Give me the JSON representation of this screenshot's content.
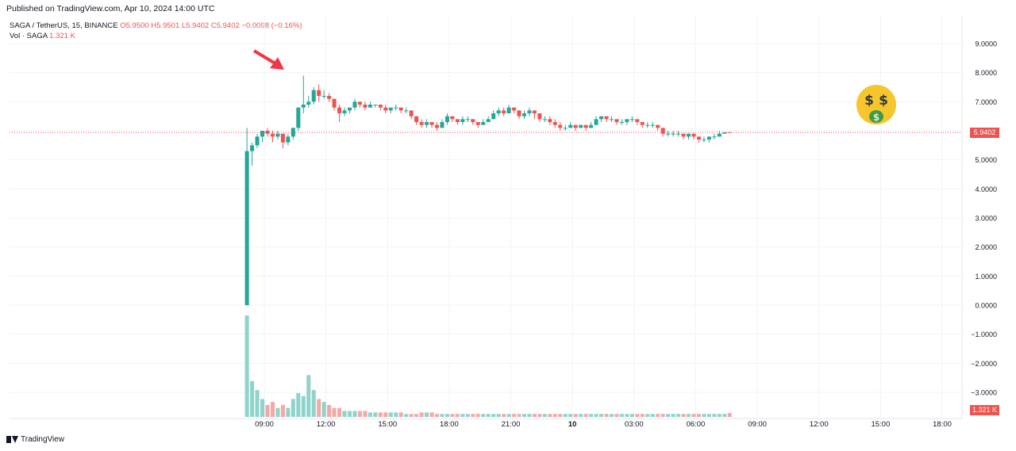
{
  "header": {
    "published": "Published on TradingView.com, Apr 10, 2024 14:00 UTC"
  },
  "legend": {
    "symbol": "SAGA / TetherUS, 15, BINANCE",
    "ohlc": "O5.9500 H5.9501 L5.9402 C5.9402 −0.0098 (−0.16%)",
    "vol_label": "Vol · SAGA",
    "vol_value": "1.321 K"
  },
  "badges": {
    "last_price": "5.9402",
    "last_volume": "1.321 K"
  },
  "footer": {
    "brand": "TradingView"
  },
  "icons": {
    "arrow": "red-arrow-icon",
    "emoji": "money-mouth-face-icon",
    "logo": "tradingview-logo-icon"
  },
  "colors": {
    "up": "#26a69a",
    "down": "#ef5350",
    "grid": "#f0f3fa",
    "text": "#131722"
  },
  "chart_data": {
    "type": "candlestick",
    "symbol": "SAGA / TetherUS",
    "interval": "15",
    "exchange": "BINANCE",
    "last_price": 5.9402,
    "y_ticks": [
      "9.0000",
      "8.0000",
      "7.0000",
      "6.0000",
      "5.0000",
      "4.0000",
      "3.0000",
      "2.0000",
      "1.0000",
      "0.0000",
      "−1.0000",
      "−2.0000",
      "−3.0000"
    ],
    "y_tick_values": [
      9,
      8,
      7,
      6,
      5,
      4,
      3,
      2,
      1,
      0,
      -1,
      -2,
      -3
    ],
    "x_ticks": [
      "09:00",
      "12:00",
      "15:00",
      "18:00",
      "21:00",
      "10",
      "03:00",
      "06:00",
      "09:00",
      "12:00",
      "15:00",
      "18:00"
    ],
    "x_tick_hours": [
      9,
      12,
      15,
      18,
      21,
      24,
      27,
      30,
      33,
      36,
      39,
      42
    ],
    "start_hour": 8,
    "bar_minutes": 15,
    "ylim": [
      -3.5,
      9.5
    ],
    "grid": true,
    "candles": [
      [
        0.0,
        5.3,
        6.1,
        0.0
      ],
      [
        5.3,
        5.5,
        5.6,
        4.8
      ],
      [
        5.5,
        5.8,
        5.9,
        5.4
      ],
      [
        5.8,
        6.0,
        6.0,
        5.6
      ],
      [
        6.0,
        5.9,
        6.1,
        5.8
      ],
      [
        5.9,
        5.8,
        6.0,
        5.6
      ],
      [
        5.8,
        5.9,
        6.0,
        5.7
      ],
      [
        5.9,
        5.6,
        5.9,
        5.4
      ],
      [
        5.6,
        5.8,
        5.9,
        5.5
      ],
      [
        5.8,
        6.1,
        6.1,
        5.7
      ],
      [
        6.1,
        6.8,
        6.8,
        6.0
      ],
      [
        6.8,
        6.9,
        7.9,
        6.6
      ],
      [
        6.9,
        7.0,
        7.2,
        6.8
      ],
      [
        7.0,
        7.4,
        7.5,
        6.9
      ],
      [
        7.4,
        7.2,
        7.6,
        7.0
      ],
      [
        7.2,
        7.2,
        7.4,
        7.1
      ],
      [
        7.2,
        7.1,
        7.3,
        7.0
      ],
      [
        7.1,
        6.8,
        7.1,
        6.7
      ],
      [
        6.8,
        6.6,
        6.9,
        6.3
      ],
      [
        6.6,
        6.7,
        6.8,
        6.5
      ],
      [
        6.7,
        6.8,
        6.8,
        6.6
      ],
      [
        6.8,
        7.0,
        7.1,
        6.7
      ],
      [
        7.0,
        6.9,
        7.0,
        6.8
      ],
      [
        6.9,
        6.8,
        7.0,
        6.7
      ],
      [
        6.8,
        6.9,
        7.0,
        6.8
      ],
      [
        6.9,
        6.9,
        6.9,
        6.8
      ],
      [
        6.9,
        6.8,
        6.9,
        6.7
      ],
      [
        6.8,
        6.7,
        6.9,
        6.6
      ],
      [
        6.7,
        6.8,
        6.8,
        6.6
      ],
      [
        6.8,
        6.8,
        6.9,
        6.7
      ],
      [
        6.8,
        6.7,
        6.8,
        6.6
      ],
      [
        6.7,
        6.7,
        6.8,
        6.6
      ],
      [
        6.7,
        6.5,
        6.7,
        6.4
      ],
      [
        6.5,
        6.3,
        6.5,
        6.2
      ],
      [
        6.3,
        6.2,
        6.4,
        6.1
      ],
      [
        6.2,
        6.3,
        6.4,
        6.1
      ],
      [
        6.3,
        6.2,
        6.3,
        6.1
      ],
      [
        6.2,
        6.1,
        6.3,
        6.0
      ],
      [
        6.1,
        6.3,
        6.4,
        6.1
      ],
      [
        6.3,
        6.5,
        6.6,
        6.2
      ],
      [
        6.5,
        6.4,
        6.5,
        6.3
      ],
      [
        6.4,
        6.3,
        6.4,
        6.2
      ],
      [
        6.3,
        6.4,
        6.5,
        6.2
      ],
      [
        6.4,
        6.4,
        6.5,
        6.3
      ],
      [
        6.4,
        6.3,
        6.4,
        6.2
      ],
      [
        6.3,
        6.2,
        6.3,
        6.1
      ],
      [
        6.2,
        6.3,
        6.4,
        6.2
      ],
      [
        6.3,
        6.4,
        6.5,
        6.3
      ],
      [
        6.4,
        6.6,
        6.7,
        6.4
      ],
      [
        6.6,
        6.7,
        6.8,
        6.5
      ],
      [
        6.7,
        6.6,
        6.8,
        6.5
      ],
      [
        6.6,
        6.8,
        6.9,
        6.6
      ],
      [
        6.8,
        6.7,
        6.8,
        6.6
      ],
      [
        6.7,
        6.5,
        6.7,
        6.4
      ],
      [
        6.5,
        6.6,
        6.7,
        6.4
      ],
      [
        6.6,
        6.7,
        6.8,
        6.5
      ],
      [
        6.7,
        6.6,
        6.7,
        6.4
      ],
      [
        6.6,
        6.4,
        6.6,
        6.3
      ],
      [
        6.4,
        6.4,
        6.5,
        6.3
      ],
      [
        6.4,
        6.3,
        6.5,
        6.2
      ],
      [
        6.3,
        6.2,
        6.4,
        6.1
      ],
      [
        6.2,
        6.1,
        6.3,
        6.0
      ],
      [
        6.1,
        6.1,
        6.2,
        6.0
      ],
      [
        6.1,
        6.2,
        6.3,
        6.1
      ],
      [
        6.2,
        6.1,
        6.2,
        6.0
      ],
      [
        6.1,
        6.2,
        6.2,
        6.1
      ],
      [
        6.2,
        6.1,
        6.2,
        6.0
      ],
      [
        6.1,
        6.2,
        6.3,
        6.1
      ],
      [
        6.2,
        6.4,
        6.5,
        6.2
      ],
      [
        6.4,
        6.5,
        6.5,
        6.3
      ],
      [
        6.5,
        6.4,
        6.5,
        6.3
      ],
      [
        6.4,
        6.4,
        6.5,
        6.3
      ],
      [
        6.4,
        6.3,
        6.4,
        6.2
      ],
      [
        6.3,
        6.3,
        6.4,
        6.2
      ],
      [
        6.3,
        6.4,
        6.4,
        6.2
      ],
      [
        6.4,
        6.4,
        6.5,
        6.3
      ],
      [
        6.4,
        6.3,
        6.4,
        6.2
      ],
      [
        6.3,
        6.2,
        6.3,
        6.1
      ],
      [
        6.2,
        6.2,
        6.3,
        6.1
      ],
      [
        6.2,
        6.2,
        6.3,
        6.1
      ],
      [
        6.2,
        6.1,
        6.2,
        6.0
      ],
      [
        6.1,
        5.9,
        6.1,
        5.8
      ],
      [
        5.9,
        5.9,
        6.0,
        5.8
      ],
      [
        5.9,
        5.9,
        6.0,
        5.8
      ],
      [
        5.9,
        5.9,
        6.0,
        5.8
      ],
      [
        5.9,
        5.8,
        5.9,
        5.7
      ],
      [
        5.8,
        5.9,
        5.9,
        5.7
      ],
      [
        5.9,
        5.8,
        5.9,
        5.7
      ],
      [
        5.8,
        5.7,
        5.8,
        5.6
      ],
      [
        5.7,
        5.7,
        5.8,
        5.6
      ],
      [
        5.7,
        5.8,
        5.8,
        5.6
      ],
      [
        5.8,
        5.8,
        5.9,
        5.7
      ],
      [
        5.8,
        5.9,
        6.0,
        5.8
      ],
      [
        5.9,
        5.95,
        5.95,
        5.9
      ],
      [
        5.95,
        5.94,
        5.95,
        5.94
      ]
    ],
    "volumes": [
      34,
      12,
      9,
      6,
      4,
      5,
      3,
      4,
      3,
      6,
      8,
      7,
      14,
      9,
      6,
      5,
      4,
      3,
      3,
      2,
      2,
      2,
      2,
      2,
      1.5,
      1.5,
      1.5,
      1.5,
      1.5,
      1.5,
      1.5,
      1,
      1,
      1,
      1.5,
      1.5,
      1.5,
      1,
      1,
      1,
      1,
      1,
      1,
      1,
      1,
      1,
      1,
      1,
      1,
      1,
      1,
      1,
      1,
      1,
      1,
      1,
      1,
      1,
      1,
      1,
      1,
      1,
      1,
      1,
      1,
      1,
      1,
      1,
      1,
      1,
      1,
      1,
      1,
      1,
      1,
      1,
      1,
      1,
      1,
      1,
      1,
      1,
      1,
      1,
      1,
      1,
      1,
      1,
      1,
      1,
      1,
      1,
      1,
      1,
      1.321
    ],
    "volume_max": 34
  }
}
